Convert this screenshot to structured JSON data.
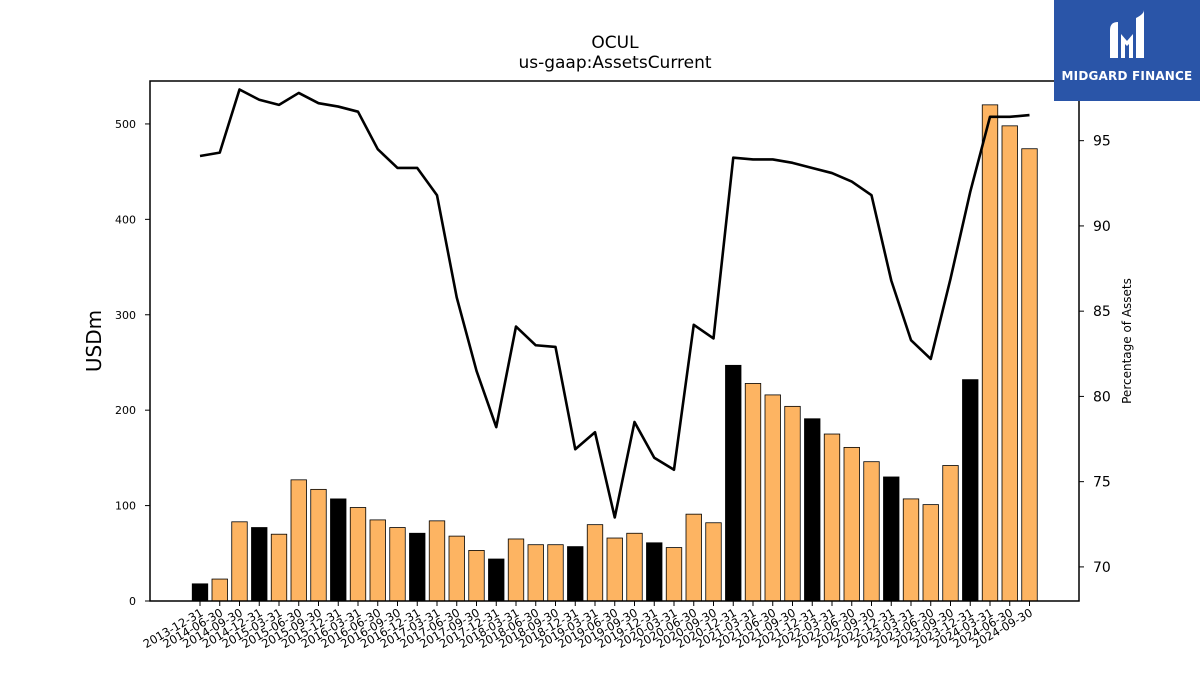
{
  "chart_data": {
    "type": "bar",
    "title": "OCUL",
    "subtitle": "us-gaap:AssetsCurrent",
    "ylabel": "USDm",
    "y2label": "Percentage of Assets",
    "ylim": [
      0,
      545
    ],
    "y2lim": [
      68,
      98.5
    ],
    "yticks": [
      0,
      100,
      200,
      300,
      400,
      500
    ],
    "y2ticks": [
      70,
      75,
      80,
      85,
      90,
      95
    ],
    "categories": [
      "2013-12-31",
      "2014-06-30",
      "2014-09-30",
      "2014-12-31",
      "2015-03-31",
      "2015-06-30",
      "2015-09-30",
      "2015-12-31",
      "2016-03-31",
      "2016-06-30",
      "2016-09-30",
      "2016-12-31",
      "2017-03-31",
      "2017-06-30",
      "2017-09-30",
      "2017-12-31",
      "2018-03-31",
      "2018-06-30",
      "2018-09-30",
      "2018-12-31",
      "2019-03-31",
      "2019-06-30",
      "2019-09-30",
      "2019-12-31",
      "2020-03-31",
      "2020-06-30",
      "2020-09-30",
      "2020-12-31",
      "2021-03-31",
      "2021-06-30",
      "2021-09-30",
      "2021-12-31",
      "2022-03-31",
      "2022-06-30",
      "2022-09-30",
      "2022-12-31",
      "2023-03-31",
      "2023-06-30",
      "2023-09-30",
      "2023-12-31",
      "2024-03-31",
      "2024-06-30",
      "2024-09-30"
    ],
    "series": [
      {
        "name": "AssetsCurrent",
        "values": [
          18,
          23,
          83,
          77,
          70,
          127,
          117,
          107,
          98,
          85,
          77,
          71,
          84,
          68,
          53,
          44,
          65,
          59,
          59,
          57,
          80,
          66,
          71,
          61,
          56,
          91,
          82,
          247,
          228,
          216,
          204,
          191,
          175,
          161,
          146,
          130,
          107,
          101,
          142,
          232,
          520,
          498,
          474
        ],
        "highlight": [
          true,
          false,
          false,
          true,
          false,
          false,
          false,
          true,
          false,
          false,
          false,
          true,
          false,
          false,
          false,
          true,
          false,
          false,
          false,
          true,
          false,
          false,
          false,
          true,
          false,
          false,
          false,
          true,
          false,
          false,
          false,
          true,
          false,
          false,
          false,
          true,
          false,
          false,
          false,
          true,
          false,
          false,
          false
        ]
      },
      {
        "name": "Percentage of Assets",
        "axis": "right",
        "values": [
          94.1,
          94.3,
          98.0,
          97.4,
          97.1,
          97.8,
          97.2,
          97.0,
          96.7,
          94.5,
          93.4,
          93.4,
          91.8,
          85.8,
          81.5,
          78.2,
          84.1,
          83.0,
          82.9,
          76.9,
          77.9,
          72.9,
          78.5,
          76.4,
          75.7,
          84.2,
          83.4,
          94.0,
          93.9,
          93.9,
          93.7,
          93.4,
          93.1,
          92.6,
          91.8,
          86.8,
          83.3,
          82.2,
          86.9,
          92.0,
          96.4,
          96.4,
          96.5
        ]
      }
    ],
    "colors": {
      "bar": "#fdb462",
      "bar_highlight": "#000000",
      "line": "#000000"
    },
    "legend": "none",
    "grid": false
  },
  "logo": {
    "name": "MIDGARD FINANCE"
  }
}
